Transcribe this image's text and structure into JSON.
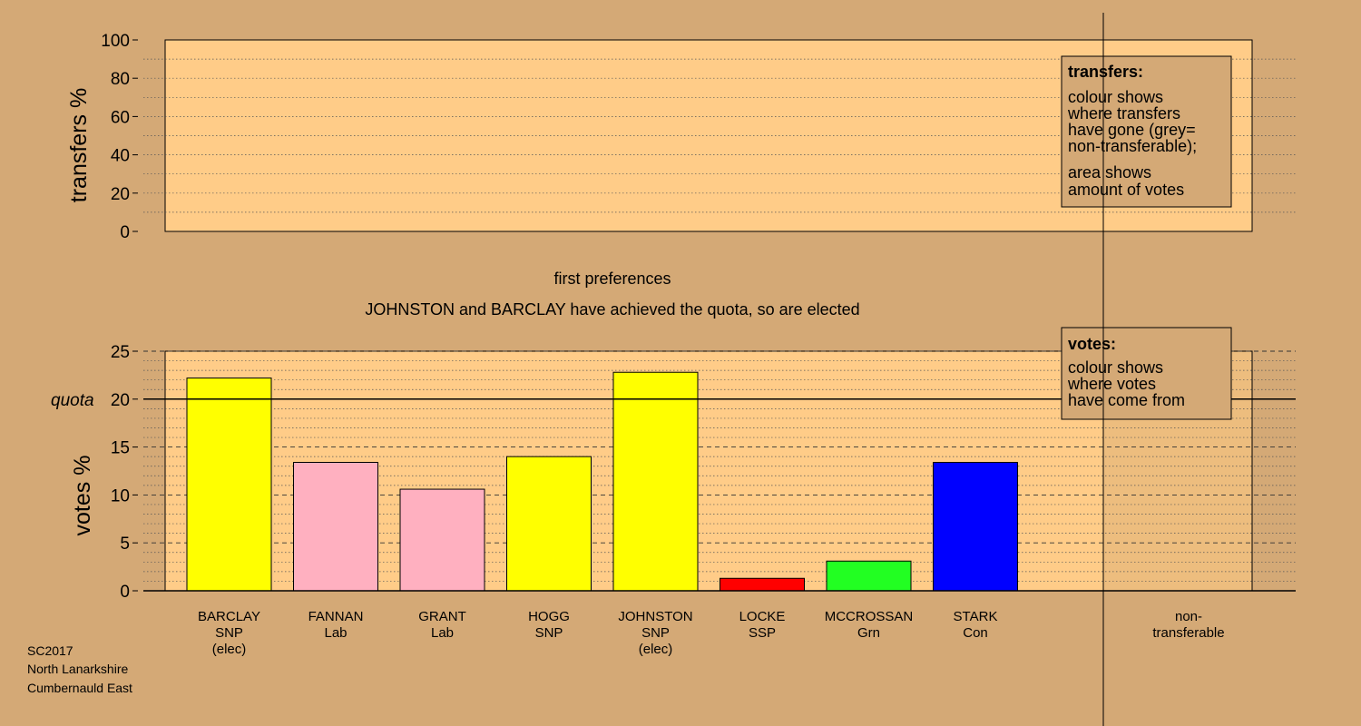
{
  "colors": {
    "background": "#d4a976",
    "plot_bg": "#ffcc88",
    "snp": "#ffff00",
    "lab": "#ffb0c0",
    "ssp": "#ff0000",
    "grn": "#22ff22",
    "con": "#0000ff",
    "legend_bg": "#d4a976"
  },
  "footer": {
    "line1": "SC2017",
    "line2": "North Lanarkshire",
    "line3": "Cumbernauld East"
  },
  "chart_data": [
    {
      "type": "bar",
      "ylabel": "transfers %",
      "ylim": [
        0,
        100
      ],
      "yticks": [
        0,
        20,
        40,
        60,
        80,
        100
      ],
      "values": [],
      "legend": {
        "title": "transfers:",
        "lines1": [
          "colour shows",
          "where transfers",
          "have gone (grey=",
          "non-transferable);"
        ],
        "lines2": [
          "area shows",
          "amount of votes"
        ]
      }
    },
    {
      "type": "bar",
      "title": "first preferences",
      "subtitle": "JOHNSTON and BARCLAY have achieved the quota, so are elected",
      "ylabel": "votes %",
      "ylim": [
        0,
        25
      ],
      "yticks": [
        0,
        5,
        10,
        15,
        20,
        25
      ],
      "quota": 20,
      "quota_label": "quota",
      "grid": true,
      "bars": [
        {
          "name": "BARCLAY",
          "party": "SNP",
          "note": "(elec)",
          "value": 22.2,
          "color": "#ffff00"
        },
        {
          "name": "FANNAN",
          "party": "Lab",
          "note": "",
          "value": 13.4,
          "color": "#ffb0c0"
        },
        {
          "name": "GRANT",
          "party": "Lab",
          "note": "",
          "value": 10.6,
          "color": "#ffb0c0"
        },
        {
          "name": "HOGG",
          "party": "SNP",
          "note": "",
          "value": 14.0,
          "color": "#ffff00"
        },
        {
          "name": "JOHNSTON",
          "party": "SNP",
          "note": "(elec)",
          "value": 22.8,
          "color": "#ffff00"
        },
        {
          "name": "LOCKE",
          "party": "SSP",
          "note": "",
          "value": 1.3,
          "color": "#ff0000"
        },
        {
          "name": "MCCROSSAN",
          "party": "Grn",
          "note": "",
          "value": 3.1,
          "color": "#22ff22"
        },
        {
          "name": "STARK",
          "party": "Con",
          "note": "",
          "value": 13.4,
          "color": "#0000ff"
        }
      ],
      "nontransferable_label": [
        "non-",
        "transferable"
      ],
      "legend": {
        "title": "votes:",
        "lines1": [
          "colour shows",
          "where votes",
          "have come from"
        ]
      }
    }
  ]
}
